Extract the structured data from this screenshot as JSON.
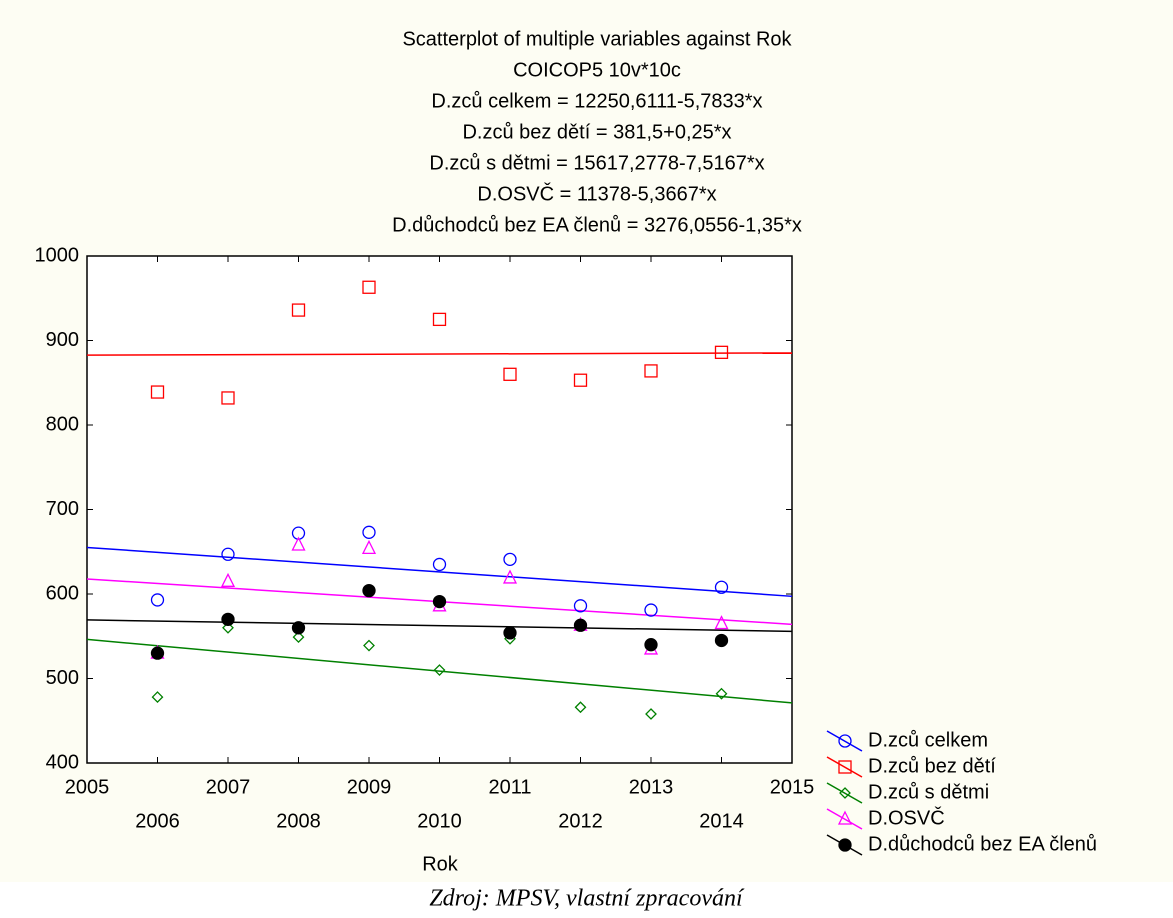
{
  "chart_data": {
    "type": "scatter",
    "title": "Scatterplot of multiple variables against Rok",
    "subtitle": "COICOP5 10v*10c",
    "annotations": [
      "D.zců celkem = 12250,6111-5,7833*x",
      "D.zců bez dětí = 381,5+0,25*x",
      "D.zců s dětmi = 15617,2778-7,5167*x",
      "D.OSVČ = 11378-5,3667*x",
      "D.důchodců bez EA členů = 3276,0556-1,35*x"
    ],
    "x_label": "Rok",
    "source": "Zdroj: MPSV, vlastní zpracování",
    "x": [
      2006,
      2007,
      2008,
      2009,
      2010,
      2011,
      2012,
      2013,
      2014
    ],
    "xlim": [
      2005,
      2015
    ],
    "xticks": [
      2005,
      2006,
      2007,
      2008,
      2009,
      2010,
      2011,
      2012,
      2013,
      2014,
      2015
    ],
    "ylim": [
      400,
      1000
    ],
    "yticks": [
      400,
      500,
      600,
      700,
      800,
      900,
      1000
    ],
    "legend": "bottom-right",
    "series": [
      {
        "name": "D.zců celkem",
        "color": "#0000ff",
        "marker": "circle",
        "values": [
          593,
          647,
          672,
          673,
          635,
          641,
          586,
          581,
          608
        ],
        "fit": {
          "intercept": 12250.6111,
          "slope": -5.7833
        }
      },
      {
        "name": "D.zců bez dětí",
        "color": "#ff0000",
        "marker": "square",
        "values": [
          839,
          832,
          936,
          963,
          925,
          860,
          853,
          864,
          886
        ],
        "fit": {
          "intercept": 381.5,
          "slope": 0.25
        }
      },
      {
        "name": "D.zců s dětmi",
        "color": "#008000",
        "marker": "diamond",
        "values": [
          478,
          560,
          549,
          539,
          510,
          547,
          466,
          458,
          482
        ],
        "fit": {
          "intercept": 15617.2778,
          "slope": -7.5167
        }
      },
      {
        "name": "D.OSVČ",
        "color": "#ff00ff",
        "marker": "triangle",
        "values": [
          530,
          615,
          658,
          654,
          586,
          619,
          563,
          535,
          565
        ],
        "fit": {
          "intercept": 11378,
          "slope": -5.3667
        }
      },
      {
        "name": "D.důchodců bez EA členů",
        "color": "#000000",
        "marker": "dot",
        "values": [
          530,
          570,
          560,
          604,
          591,
          554,
          563,
          540,
          545
        ],
        "fit": {
          "intercept": 3276.0556,
          "slope": -1.35
        }
      }
    ]
  }
}
